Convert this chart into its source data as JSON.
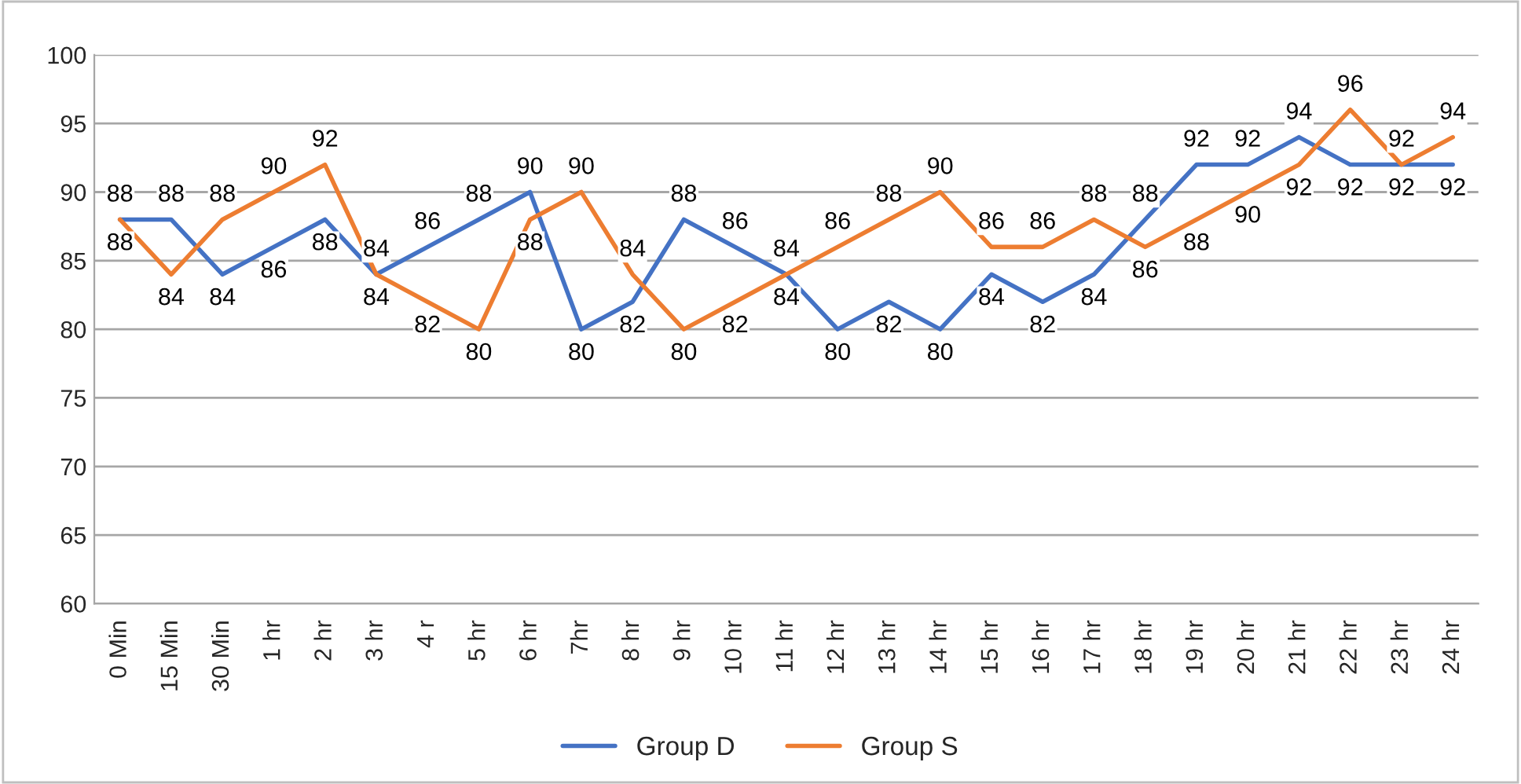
{
  "chart_data": {
    "type": "line",
    "categories": [
      "0 Min",
      "15 Min",
      "30 Min",
      "1 hr",
      "2 hr",
      "3 hr",
      "4 r",
      "5 hr",
      "6 hr",
      "7hr",
      "8 hr",
      "9 hr",
      "10 hr",
      "11 hr",
      "12 hr",
      "13 hr",
      "14 hr",
      "15 hr",
      "16 hr",
      "17 hr",
      "18 hr",
      "19 hr",
      "20 hr",
      "21 hr",
      "22 hr",
      "23 hr",
      "24 hr"
    ],
    "series": [
      {
        "name": "Group D",
        "color": "#4472c4",
        "values": [
          88,
          88,
          84,
          86,
          88,
          84,
          86,
          88,
          90,
          80,
          82,
          88,
          86,
          84,
          80,
          82,
          80,
          84,
          82,
          84,
          88,
          92,
          92,
          94,
          92,
          92,
          92
        ]
      },
      {
        "name": "Group S",
        "color": "#ed7d31",
        "values": [
          88,
          84,
          88,
          90,
          92,
          84,
          82,
          80,
          88,
          90,
          84,
          80,
          82,
          84,
          86,
          88,
          90,
          86,
          86,
          88,
          86,
          88,
          90,
          92,
          96,
          92,
          94
        ]
      }
    ],
    "ylim": [
      60,
      100
    ],
    "yticks": [
      60,
      65,
      70,
      75,
      80,
      85,
      90,
      95,
      100
    ],
    "grid": "y",
    "legend": "bottom",
    "data_labels": true,
    "marker": "none",
    "line_style": "solid"
  }
}
